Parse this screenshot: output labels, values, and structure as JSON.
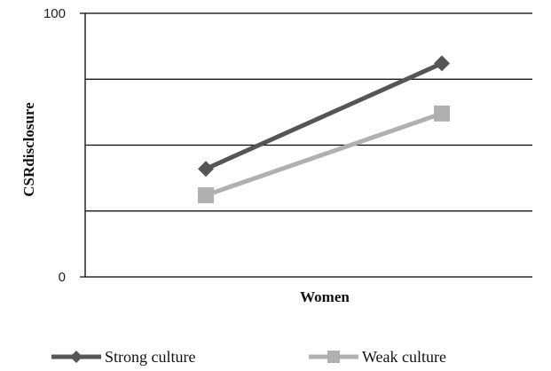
{
  "chart_data": {
    "type": "line",
    "categories": [
      "",
      ""
    ],
    "series": [
      {
        "name": "Strong culture",
        "values": [
          41,
          81
        ],
        "color": "#555555",
        "marker": "diamond"
      },
      {
        "name": "Weak culture",
        "values": [
          31,
          62
        ],
        "color": "#b0b0b0",
        "marker": "square"
      }
    ],
    "xlabel": "Women",
    "ylabel": "CSRdisclosure",
    "ylim": [
      0,
      100
    ],
    "ytick_labels": [
      {
        "value": 0,
        "label": "0"
      },
      {
        "value": 100,
        "label": "100"
      }
    ],
    "gridlines": [
      25,
      50,
      75,
      100
    ],
    "grid": true,
    "legend_position": "bottom"
  }
}
